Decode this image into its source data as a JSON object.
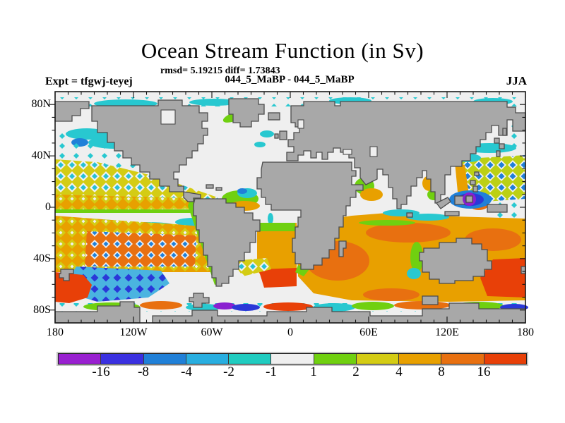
{
  "header": {
    "title": "Ocean Stream Function (in Sv)",
    "stats": "rmsd= 5.19215 diff= 1.73843",
    "comparison": "044_5_MaBP - 044_5_MaBP",
    "experiment": "Expt = tfgwj-teyej",
    "season": "JJA"
  },
  "chart_data": {
    "type": "heatmap",
    "title": "Ocean Stream Function (in Sv)",
    "units": "Sv",
    "rmsd": 5.19215,
    "diff": 1.73843,
    "comparison": "044_5_MaBP - 044_5_MaBP",
    "experiment_pair": "tfgwj-teyej",
    "season": "JJA",
    "projection": "global longitude-latitude map, 180W to 180E, 90S to 90N",
    "grid": false,
    "x_axis": {
      "label_ticks": [
        "180",
        "120W",
        "60W",
        "0",
        "60E",
        "120E",
        "180"
      ],
      "tick_positions_deg": [
        -180,
        -120,
        -60,
        0,
        60,
        120,
        180
      ],
      "minor_step_deg": 10,
      "range_deg": [
        -180,
        180
      ]
    },
    "y_axis": {
      "label_ticks": [
        "80N",
        "40N",
        "0",
        "40S",
        "80S"
      ],
      "tick_positions_deg": [
        80,
        40,
        0,
        -40,
        -80
      ],
      "minor_step_deg": 10,
      "range_deg": [
        -90,
        90
      ]
    },
    "colorbar": {
      "orientation": "horizontal-bottom",
      "boundary_labels": [
        "-16",
        "-8",
        "-4",
        "-2",
        "-1",
        "1",
        "2",
        "4",
        "8",
        "16"
      ],
      "colors": [
        "#9920d0",
        "#3a30e0",
        "#2080d8",
        "#28aee0",
        "#20ccc0",
        "#efefef",
        "#70d010",
        "#d4cc14",
        "#e8a000",
        "#e87010",
        "#e84008"
      ]
    },
    "map_colors": {
      "land": "#a8a8a8",
      "coastline": "#4c4c4c",
      "ocean_background": "#efefef"
    },
    "features": [
      "broad positive (orange/red, 2-16 Sv) anomaly belt across all southern-hemisphere oceans roughly 5S-55S",
      "checkerboard positive (yellow/orange) band with embedded cyan negatives in tropical North Pacific ~0-30N",
      "strong negative (blue, -4 to -8 Sv) region in South Pacific ~45-60S with dark blue diamonds",
      "intense negative cell with purple core (< -16 Sv) around a small island in the western equatorial Pacific",
      "green/cyan/blue diamond lattice in the northwest Pacific ~20-45N",
      "weak negative (cyan) patches along the Arctic edge, 60N North Pacific and equatorial band",
      "near-zero (white, -1 to 1 Sv) band along the equator and northern mid-latitude oceans",
      "red maxima south of New Zealand and in the far southeast Indian/Pacific sector",
      "gray land mask with blocky coarse-resolution model coastline"
    ]
  }
}
